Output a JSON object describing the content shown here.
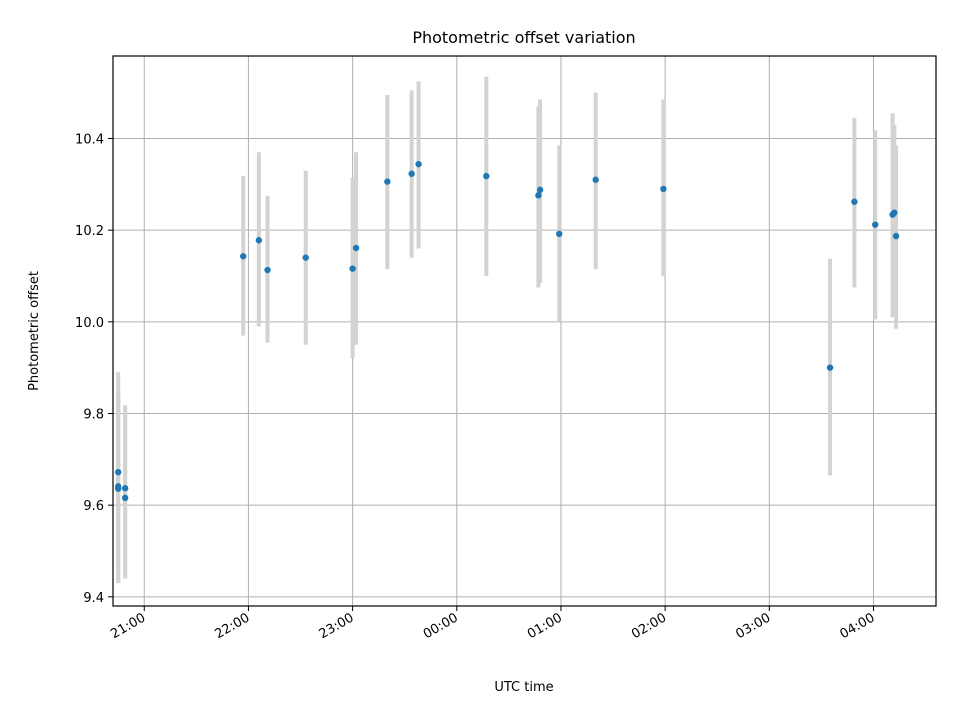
{
  "chart_data": {
    "type": "scatter",
    "title": "Photometric offset variation",
    "xlabel": "UTC time",
    "ylabel": "Photometric offset",
    "x_axis_kind": "time",
    "x_tick_values": [
      "21:00",
      "22:00",
      "23:00",
      "00:00",
      "01:00",
      "02:00",
      "03:00",
      "04:00"
    ],
    "x_tick_labels": [
      "21:00",
      "22:00",
      "23:00",
      "00:00",
      "01:00",
      "02:00",
      "03:00",
      "04:00"
    ],
    "y_tick_values": [
      9.4,
      9.6,
      9.8,
      10.0,
      10.2,
      10.4
    ],
    "y_tick_labels": [
      "9.4",
      "9.6",
      "9.8",
      "10.0",
      "10.2",
      "10.4"
    ],
    "xlim": [
      "20:42",
      "04:36"
    ],
    "ylim": [
      9.38,
      10.58
    ],
    "grid": true,
    "colors": {
      "point": "#1f77b4",
      "error_bar": "#d3d3d3",
      "grid": "#b0b0b0"
    },
    "series": [
      {
        "points": [
          {
            "x": "20:45",
            "y": 9.672,
            "lo": 9.455,
            "hi": 9.89
          },
          {
            "x": "20:45",
            "y": 9.641,
            "lo": 9.43,
            "hi": 9.85
          },
          {
            "x": "20:45",
            "y": 9.636,
            "lo": 9.43,
            "hi": 9.845
          },
          {
            "x": "20:49",
            "y": 9.637,
            "lo": 9.44,
            "hi": 9.818
          },
          {
            "x": "20:49",
            "y": 9.616,
            "lo": 9.44,
            "hi": 9.8
          },
          {
            "x": "21:57",
            "y": 10.143,
            "lo": 9.97,
            "hi": 10.318
          },
          {
            "x": "22:06",
            "y": 10.178,
            "lo": 9.99,
            "hi": 10.37
          },
          {
            "x": "22:11",
            "y": 10.113,
            "lo": 9.955,
            "hi": 10.275
          },
          {
            "x": "22:33",
            "y": 10.14,
            "lo": 9.95,
            "hi": 10.33
          },
          {
            "x": "23:00",
            "y": 10.116,
            "lo": 9.92,
            "hi": 10.315
          },
          {
            "x": "23:02",
            "y": 10.161,
            "lo": 9.95,
            "hi": 10.37
          },
          {
            "x": "23:20",
            "y": 10.306,
            "lo": 10.115,
            "hi": 10.495
          },
          {
            "x": "23:34",
            "y": 10.323,
            "lo": 10.14,
            "hi": 10.505
          },
          {
            "x": "23:38",
            "y": 10.344,
            "lo": 10.16,
            "hi": 10.525
          },
          {
            "x": "00:17",
            "y": 10.318,
            "lo": 10.1,
            "hi": 10.535
          },
          {
            "x": "00:47",
            "y": 10.276,
            "lo": 10.075,
            "hi": 10.47
          },
          {
            "x": "00:48",
            "y": 10.288,
            "lo": 10.085,
            "hi": 10.485
          },
          {
            "x": "00:59",
            "y": 10.192,
            "lo": 10.0,
            "hi": 10.385
          },
          {
            "x": "01:20",
            "y": 10.31,
            "lo": 10.115,
            "hi": 10.5
          },
          {
            "x": "01:59",
            "y": 10.29,
            "lo": 10.1,
            "hi": 10.485
          },
          {
            "x": "03:35",
            "y": 9.9,
            "lo": 9.665,
            "hi": 10.138
          },
          {
            "x": "03:49",
            "y": 10.262,
            "lo": 10.075,
            "hi": 10.445
          },
          {
            "x": "04:01",
            "y": 10.212,
            "lo": 10.005,
            "hi": 10.418
          },
          {
            "x": "04:11",
            "y": 10.234,
            "lo": 10.01,
            "hi": 10.455
          },
          {
            "x": "04:12",
            "y": 10.238,
            "lo": 10.04,
            "hi": 10.43
          },
          {
            "x": "04:13",
            "y": 10.187,
            "lo": 9.985,
            "hi": 10.385
          }
        ]
      }
    ]
  }
}
